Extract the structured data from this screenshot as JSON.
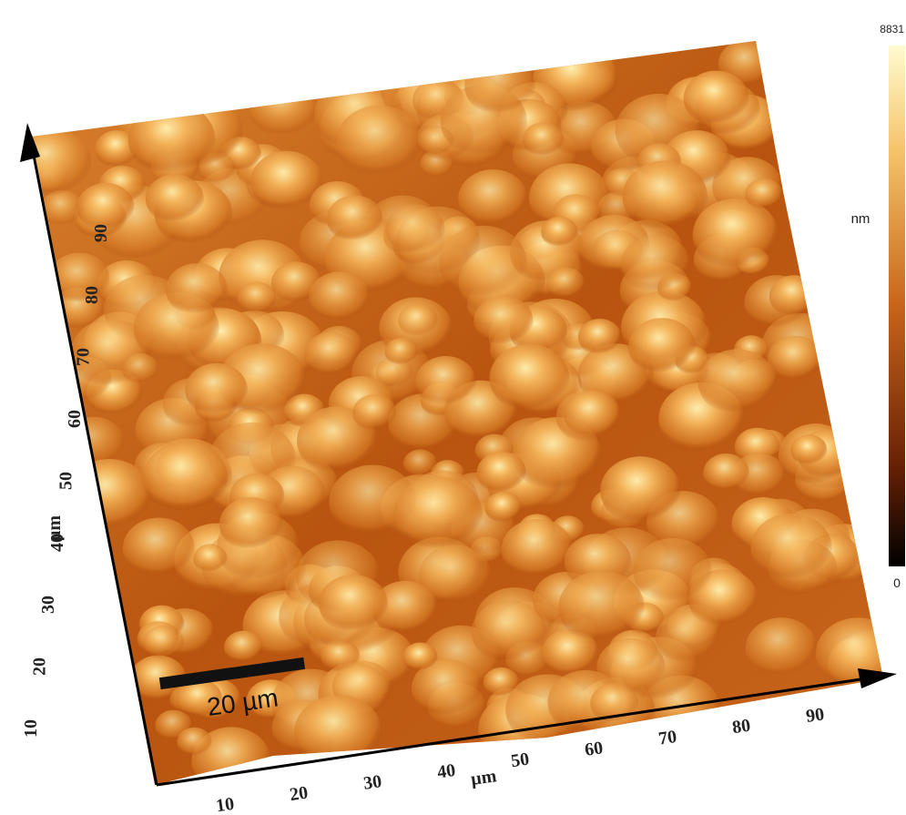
{
  "y_axis": {
    "label": "µm",
    "ticks": [
      "10",
      "20",
      "30",
      "40",
      "50",
      "60",
      "70",
      "80",
      "90"
    ]
  },
  "x_axis": {
    "label": "µm",
    "ticks": [
      "10",
      "20",
      "30",
      "40",
      "50",
      "60",
      "70",
      "80",
      "90"
    ]
  },
  "scale_bar": {
    "label": "20 µm"
  },
  "colorbar": {
    "max": "8831",
    "unit": "nm",
    "min": "0"
  }
}
